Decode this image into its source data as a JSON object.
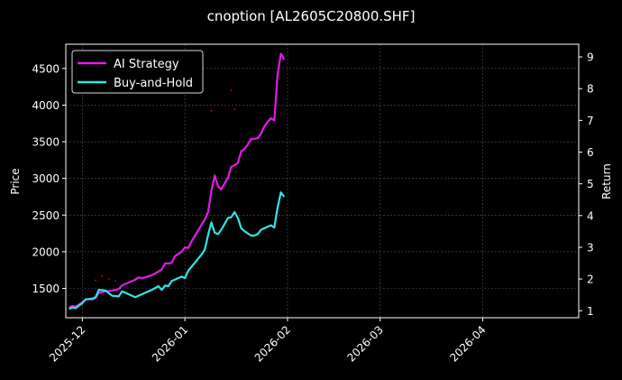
{
  "chart_data": {
    "type": "line",
    "title": "cnoption [AL2605C20800.SHF]",
    "xlabel": "",
    "ylabel_left": "Price",
    "ylabel_right": "Return",
    "x_tick_labels": [
      "2025-12",
      "2026-01",
      "2026-02",
      "2026-03",
      "2026-04"
    ],
    "x_ticks": [
      "2025-12-01",
      "2026-01-01",
      "2026-02-01",
      "2026-03-01",
      "2026-04-01"
    ],
    "x_range": [
      "2025-11-26",
      "2026-04-30"
    ],
    "y_left_ticks": [
      1500,
      2000,
      2500,
      3000,
      3500,
      4000,
      4500
    ],
    "y_left_range": [
      1100,
      4830
    ],
    "y_right_ticks": [
      1,
      2,
      3,
      4,
      5,
      6,
      7,
      8,
      9
    ],
    "y_right_range": [
      0.78,
      9.4
    ],
    "grid": true,
    "legend_position": "top-left",
    "background": "#000000",
    "grid_color": "#555555",
    "series": [
      {
        "name": "AI Strategy",
        "axis": "left",
        "color": "#e619e6",
        "points": [
          [
            "2025-11-27",
            1240
          ],
          [
            "2025-11-28",
            1260
          ],
          [
            "2025-11-29",
            1250
          ],
          [
            "2025-12-01",
            1310
          ],
          [
            "2025-12-02",
            1350
          ],
          [
            "2025-12-04",
            1350
          ],
          [
            "2025-12-05",
            1370
          ],
          [
            "2025-12-06",
            1440
          ],
          [
            "2025-12-08",
            1460
          ],
          [
            "2025-12-10",
            1470
          ],
          [
            "2025-12-12",
            1490
          ],
          [
            "2025-12-13",
            1540
          ],
          [
            "2025-12-15",
            1580
          ],
          [
            "2025-12-17",
            1620
          ],
          [
            "2025-12-18",
            1650
          ],
          [
            "2025-12-19",
            1640
          ],
          [
            "2025-12-20",
            1650
          ],
          [
            "2025-12-22",
            1680
          ],
          [
            "2025-12-24",
            1730
          ],
          [
            "2025-12-25",
            1760
          ],
          [
            "2025-12-26",
            1840
          ],
          [
            "2025-12-27",
            1840
          ],
          [
            "2025-12-28",
            1850
          ],
          [
            "2025-12-29",
            1940
          ],
          [
            "2025-12-31",
            2000
          ],
          [
            "2026-01-01",
            2060
          ],
          [
            "2026-01-02",
            2050
          ],
          [
            "2026-01-03",
            2140
          ],
          [
            "2026-01-05",
            2290
          ],
          [
            "2026-01-07",
            2440
          ],
          [
            "2026-01-08",
            2540
          ],
          [
            "2026-01-09",
            2830
          ],
          [
            "2026-01-10",
            3040
          ],
          [
            "2026-01-11",
            2890
          ],
          [
            "2026-01-12",
            2850
          ],
          [
            "2026-01-14",
            3010
          ],
          [
            "2026-01-15",
            3160
          ],
          [
            "2026-01-16",
            3180
          ],
          [
            "2026-01-17",
            3210
          ],
          [
            "2026-01-18",
            3370
          ],
          [
            "2026-01-19",
            3400
          ],
          [
            "2026-01-20",
            3460
          ],
          [
            "2026-01-21",
            3540
          ],
          [
            "2026-01-22",
            3540
          ],
          [
            "2026-01-23",
            3550
          ],
          [
            "2026-01-24",
            3610
          ],
          [
            "2026-01-25",
            3710
          ],
          [
            "2026-01-26",
            3770
          ],
          [
            "2026-01-27",
            3820
          ],
          [
            "2026-01-28",
            3790
          ],
          [
            "2026-01-29",
            4410
          ],
          [
            "2026-01-30",
            4700
          ],
          [
            "2026-01-31",
            4620
          ]
        ]
      },
      {
        "name": "Buy-and-Hold",
        "axis": "left",
        "color": "#2ee6e6",
        "points": [
          [
            "2025-11-27",
            1220
          ],
          [
            "2025-11-28",
            1240
          ],
          [
            "2025-11-29",
            1230
          ],
          [
            "2025-12-01",
            1300
          ],
          [
            "2025-12-02",
            1350
          ],
          [
            "2025-12-04",
            1360
          ],
          [
            "2025-12-05",
            1380
          ],
          [
            "2025-12-06",
            1480
          ],
          [
            "2025-12-08",
            1470
          ],
          [
            "2025-12-10",
            1400
          ],
          [
            "2025-12-12",
            1390
          ],
          [
            "2025-12-13",
            1460
          ],
          [
            "2025-12-15",
            1420
          ],
          [
            "2025-12-17",
            1380
          ],
          [
            "2025-12-18",
            1400
          ],
          [
            "2025-12-20",
            1440
          ],
          [
            "2025-12-22",
            1480
          ],
          [
            "2025-12-24",
            1530
          ],
          [
            "2025-12-25",
            1480
          ],
          [
            "2025-12-26",
            1540
          ],
          [
            "2025-12-27",
            1530
          ],
          [
            "2025-12-28",
            1600
          ],
          [
            "2025-12-29",
            1620
          ],
          [
            "2025-12-31",
            1660
          ],
          [
            "2026-01-01",
            1640
          ],
          [
            "2026-01-02",
            1740
          ],
          [
            "2026-01-04",
            1850
          ],
          [
            "2026-01-06",
            1960
          ],
          [
            "2026-01-07",
            2030
          ],
          [
            "2026-01-08",
            2230
          ],
          [
            "2026-01-09",
            2400
          ],
          [
            "2026-01-10",
            2260
          ],
          [
            "2026-01-11",
            2240
          ],
          [
            "2026-01-12",
            2300
          ],
          [
            "2026-01-13",
            2380
          ],
          [
            "2026-01-14",
            2460
          ],
          [
            "2026-01-15",
            2470
          ],
          [
            "2026-01-16",
            2540
          ],
          [
            "2026-01-17",
            2460
          ],
          [
            "2026-01-18",
            2320
          ],
          [
            "2026-01-19",
            2280
          ],
          [
            "2026-01-20",
            2250
          ],
          [
            "2026-01-21",
            2220
          ],
          [
            "2026-01-22",
            2220
          ],
          [
            "2026-01-23",
            2240
          ],
          [
            "2026-01-24",
            2300
          ],
          [
            "2026-01-26",
            2340
          ],
          [
            "2026-01-27",
            2360
          ],
          [
            "2026-01-28",
            2330
          ],
          [
            "2026-01-29",
            2600
          ],
          [
            "2026-01-30",
            2810
          ],
          [
            "2026-01-31",
            2750
          ]
        ]
      }
    ],
    "trade_markers": {
      "color": "#cc0000",
      "points": [
        [
          "2025-12-05",
          1610
        ],
        [
          "2025-12-07",
          1670
        ],
        [
          "2025-12-09",
          1630
        ],
        [
          "2025-12-11",
          1600
        ],
        [
          "2026-01-09",
          3920
        ],
        [
          "2026-01-15",
          4200
        ],
        [
          "2026-01-16",
          3940
        ]
      ]
    }
  }
}
